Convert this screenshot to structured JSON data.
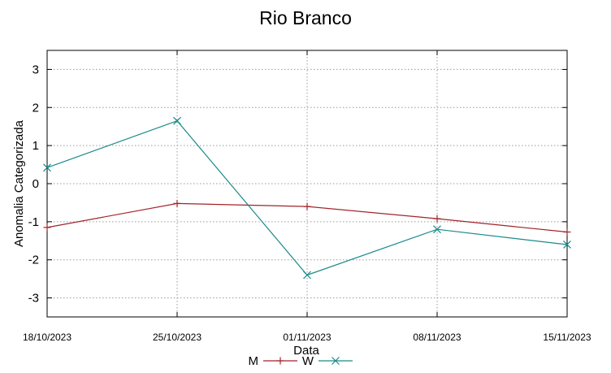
{
  "chart_data": {
    "type": "line",
    "title": "Rio Branco",
    "xlabel": "Data",
    "ylabel": "Anomalia Categorizada",
    "categories": [
      "18/10/2023",
      "25/10/2023",
      "01/11/2023",
      "08/11/2023",
      "15/11/2023"
    ],
    "ylim": [
      -3.5,
      3.5
    ],
    "yticks": [
      3,
      2,
      1,
      0,
      -1,
      -2,
      -3
    ],
    "grid": true,
    "legend_position": "bottom-center",
    "series": [
      {
        "name": "M",
        "color": "#a0242b",
        "marker": "plus",
        "values": [
          -1.15,
          -0.52,
          -0.6,
          -0.92,
          -1.27
        ]
      },
      {
        "name": "W",
        "color": "#1b8a8a",
        "marker": "x",
        "values": [
          0.42,
          1.65,
          -2.4,
          -1.2,
          -1.6
        ]
      }
    ]
  }
}
